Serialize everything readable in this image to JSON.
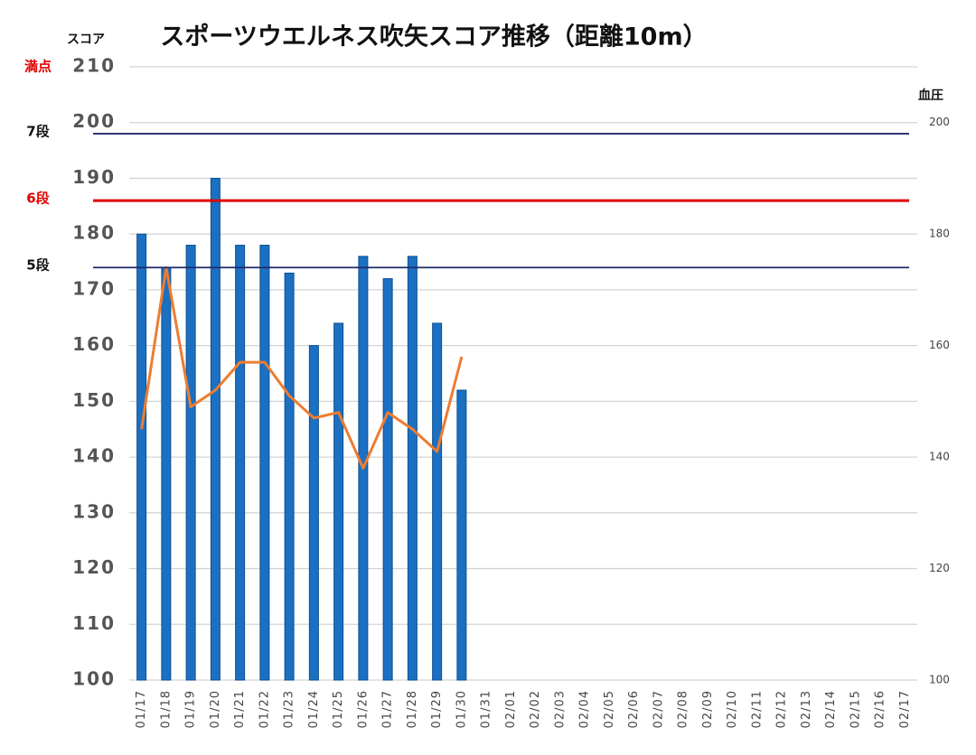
{
  "chart_data": {
    "type": "bar",
    "title": "スポーツウエルネス吹矢スコア推移（距離10m）",
    "ylabel": "スコア",
    "y2label": "血圧",
    "categories": [
      "01/17",
      "01/18",
      "01/19",
      "01/20",
      "01/21",
      "01/22",
      "01/23",
      "01/24",
      "01/25",
      "01/26",
      "01/27",
      "01/28",
      "01/29",
      "01/30",
      "01/31",
      "02/01",
      "02/02",
      "02/03",
      "02/04",
      "02/05",
      "02/06",
      "02/07",
      "02/08",
      "02/09",
      "02/10",
      "02/11",
      "02/12",
      "02/13",
      "02/14",
      "02/15",
      "02/16",
      "02/17"
    ],
    "series": [
      {
        "type": "bar",
        "color": "#1b70c2",
        "values": [
          180,
          174,
          178,
          190,
          178,
          178,
          173,
          160,
          164,
          176,
          172,
          176,
          164,
          152,
          null,
          null,
          null,
          null,
          null,
          null,
          null,
          null,
          null,
          null,
          null,
          null,
          null,
          null,
          null,
          null,
          null,
          null
        ]
      },
      {
        "type": "line",
        "axis": "y2",
        "color": "#ed7d31",
        "values": [
          145,
          174,
          149,
          152,
          157,
          157,
          151,
          147,
          148,
          138,
          148,
          145,
          141,
          158,
          null,
          null,
          null,
          null,
          null,
          null,
          null,
          null,
          null,
          null,
          null,
          null,
          null,
          null,
          null,
          null,
          null,
          null
        ]
      }
    ],
    "ylim": [
      100,
      210
    ],
    "yticks": [
      100,
      110,
      120,
      130,
      140,
      150,
      160,
      170,
      180,
      190,
      200,
      210
    ],
    "y2lim": [
      100,
      210
    ],
    "y2ticks": [
      100,
      120,
      140,
      160,
      180,
      200
    ],
    "grid": true,
    "annotations": [
      {
        "text": "満点",
        "value": 210,
        "color": "#e00000",
        "line": false
      },
      {
        "text": "7段",
        "value": 198,
        "color": "#1f2a6b",
        "line": true
      },
      {
        "text": "6段",
        "value": 186,
        "color": "#e00000",
        "line": true
      },
      {
        "text": "5段",
        "value": 174,
        "color": "#1f2a6b",
        "line": true
      }
    ]
  }
}
